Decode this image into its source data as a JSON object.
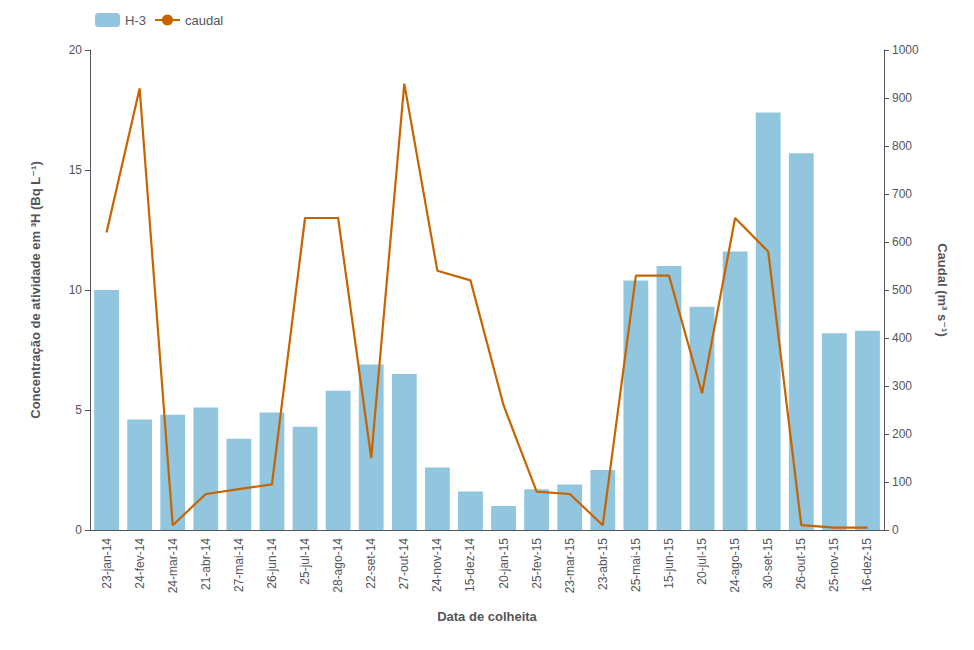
{
  "chart_data": {
    "type": "bar",
    "categories": [
      "23-jan-14",
      "24-fev-14",
      "24-mar-14",
      "21-abr-14",
      "27-mai-14",
      "26-jun-14",
      "25-jul-14",
      "28-ago-14",
      "22-set-14",
      "27-out-14",
      "24-nov-14",
      "15-dez-14",
      "20-jan-15",
      "25-fev-15",
      "23-mar-15",
      "23-abr-15",
      "25-mai-15",
      "15-jun-15",
      "20-jul-15",
      "24-ago-15",
      "30-set-15",
      "26-out-15",
      "25-nov-15",
      "16-dez-15"
    ],
    "series": [
      {
        "name": "H-3",
        "type": "bar",
        "color": "#92C5DE",
        "axis": "y",
        "values": [
          10.0,
          4.6,
          4.8,
          5.1,
          3.8,
          4.9,
          4.3,
          5.8,
          6.9,
          6.5,
          2.6,
          1.6,
          1.0,
          1.7,
          1.9,
          2.5,
          10.4,
          11.0,
          9.3,
          11.6,
          17.4,
          15.7,
          8.2,
          8.3
        ]
      },
      {
        "name": "caudal",
        "type": "line",
        "color": "#C86400",
        "axis": "y2",
        "values": [
          620,
          920,
          10,
          75,
          85,
          95,
          650,
          650,
          150,
          930,
          540,
          520,
          260,
          80,
          75,
          10,
          530,
          530,
          285,
          650,
          580,
          10,
          5,
          5
        ]
      }
    ],
    "xlabel": "Data de colheita",
    "ylabel": "Concentração de atividade em ³H (Bq L⁻¹)",
    "y2label": "Caudal (m³ s⁻¹)",
    "ylim": [
      0,
      20
    ],
    "yticks": [
      0,
      5,
      10,
      15,
      20
    ],
    "y2lim": [
      0,
      1000
    ],
    "y2ticks": [
      0,
      100,
      200,
      300,
      400,
      500,
      600,
      700,
      800,
      900,
      1000
    ],
    "grid": false,
    "legend": "upper left"
  }
}
